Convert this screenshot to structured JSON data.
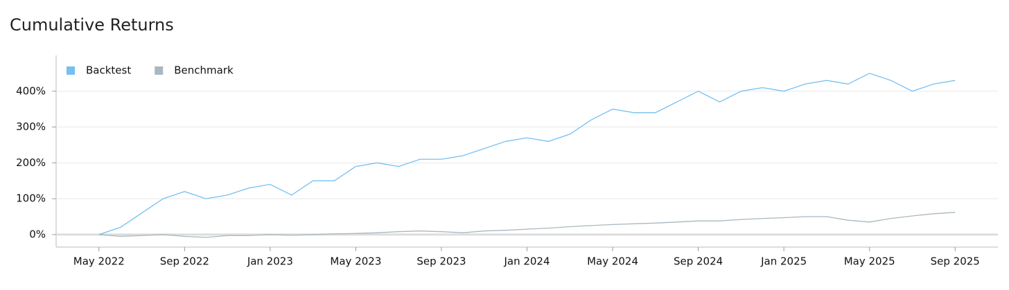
{
  "chart_data": {
    "type": "line",
    "title": "Cumulative Returns",
    "x": [
      "2022-05",
      "2022-06",
      "2022-07",
      "2022-08",
      "2022-09",
      "2022-10",
      "2022-11",
      "2022-12",
      "2023-01",
      "2023-02",
      "2023-03",
      "2023-04",
      "2023-05",
      "2023-06",
      "2023-07",
      "2023-08",
      "2023-09",
      "2023-10",
      "2023-11",
      "2023-12",
      "2024-01",
      "2024-02",
      "2024-03",
      "2024-04",
      "2024-05",
      "2024-06",
      "2024-07",
      "2024-08",
      "2024-09",
      "2024-10",
      "2024-11",
      "2024-12",
      "2025-01",
      "2025-02",
      "2025-03",
      "2025-04",
      "2025-05",
      "2025-06",
      "2025-07",
      "2025-08",
      "2025-09"
    ],
    "series": [
      {
        "name": "Backtest",
        "color": "#74c0f0",
        "values": [
          0,
          20,
          60,
          100,
          120,
          100,
          110,
          130,
          140,
          110,
          150,
          150,
          190,
          200,
          190,
          210,
          210,
          220,
          240,
          260,
          270,
          260,
          280,
          320,
          350,
          340,
          340,
          370,
          400,
          370,
          400,
          410,
          400,
          420,
          430,
          420,
          450,
          430,
          400,
          420,
          430
        ]
      },
      {
        "name": "Benchmark",
        "color": "#a9b8bf",
        "values": [
          0,
          -5,
          -3,
          0,
          -5,
          -8,
          -3,
          -3,
          0,
          -2,
          0,
          2,
          3,
          5,
          8,
          10,
          8,
          5,
          10,
          12,
          15,
          18,
          22,
          25,
          28,
          30,
          32,
          35,
          38,
          38,
          42,
          45,
          47,
          50,
          50,
          40,
          35,
          45,
          52,
          58,
          62
        ]
      }
    ],
    "xlim": [
      "2022-03",
      "2025-11"
    ],
    "xticks": [
      {
        "value": "2022-05",
        "label": "May 2022"
      },
      {
        "value": "2022-09",
        "label": "Sep 2022"
      },
      {
        "value": "2023-01",
        "label": "Jan 2023"
      },
      {
        "value": "2023-05",
        "label": "May 2023"
      },
      {
        "value": "2023-09",
        "label": "Sep 2023"
      },
      {
        "value": "2024-01",
        "label": "Jan 2024"
      },
      {
        "value": "2024-05",
        "label": "May 2024"
      },
      {
        "value": "2024-09",
        "label": "Sep 2024"
      },
      {
        "value": "2025-01",
        "label": "Jan 2025"
      },
      {
        "value": "2025-05",
        "label": "May 2025"
      },
      {
        "value": "2025-09",
        "label": "Sep 2025"
      }
    ],
    "ylim": [
      -35,
      500
    ],
    "yticks": [
      {
        "value": 0,
        "label": "0%"
      },
      {
        "value": 100,
        "label": "100%"
      },
      {
        "value": 200,
        "label": "200%"
      },
      {
        "value": 300,
        "label": "300%"
      },
      {
        "value": 400,
        "label": "400%"
      }
    ],
    "grid": true,
    "legend": "upper left"
  }
}
